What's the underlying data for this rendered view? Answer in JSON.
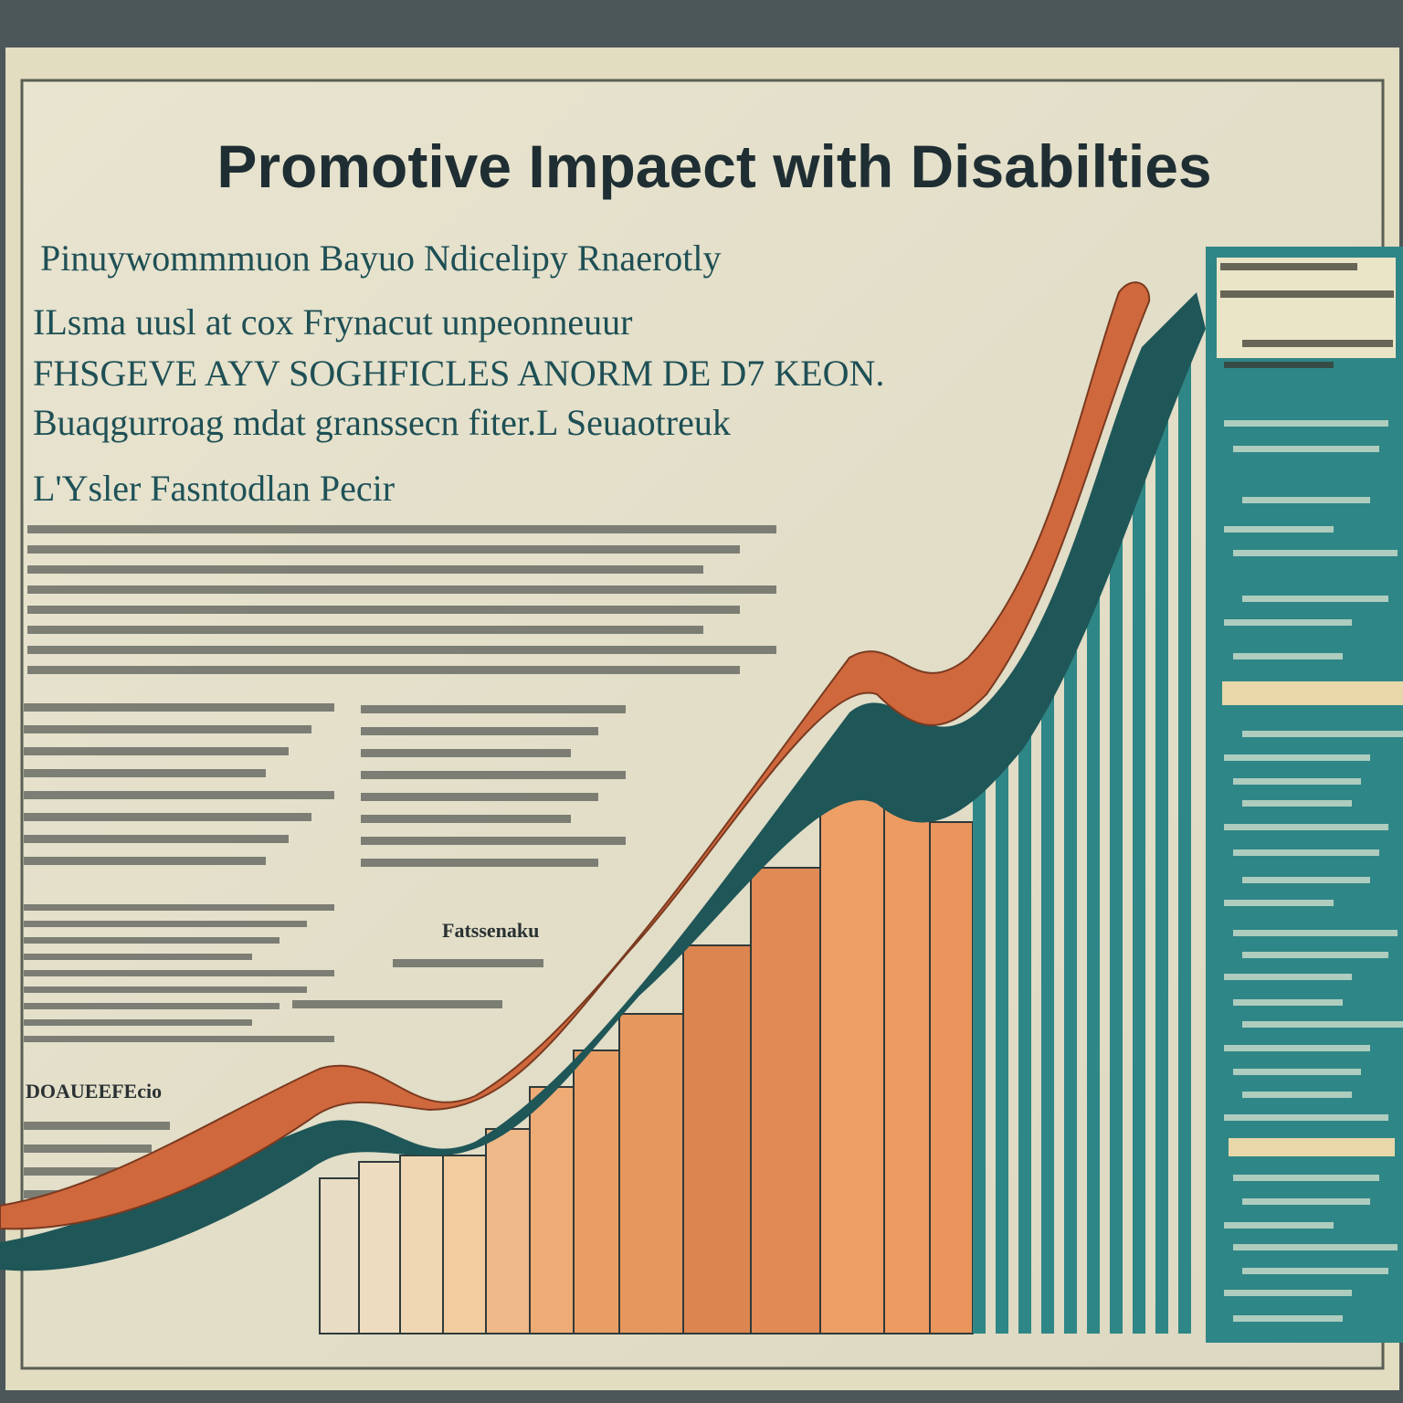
{
  "poster": {
    "title": "Promotive Impaect with Disabilties",
    "intro_lines": [
      "Pinuywommmuon Bayuo Ndicelipy Rnaerotly",
      "ILsma uusl at cox Frynacut unpeonneuur",
      "FHSGEVE AYV SOGHFICLES ANORM DE D7 KEON.",
      "Buaqgurroag mdat granssecn fiter.L Seuaotreuk"
    ],
    "subheading": "L'Ysler Fasntodlan Pecir",
    "chart_label": "Fatssenaku",
    "footer_label": "DOAUEEFEcio"
  }
}
